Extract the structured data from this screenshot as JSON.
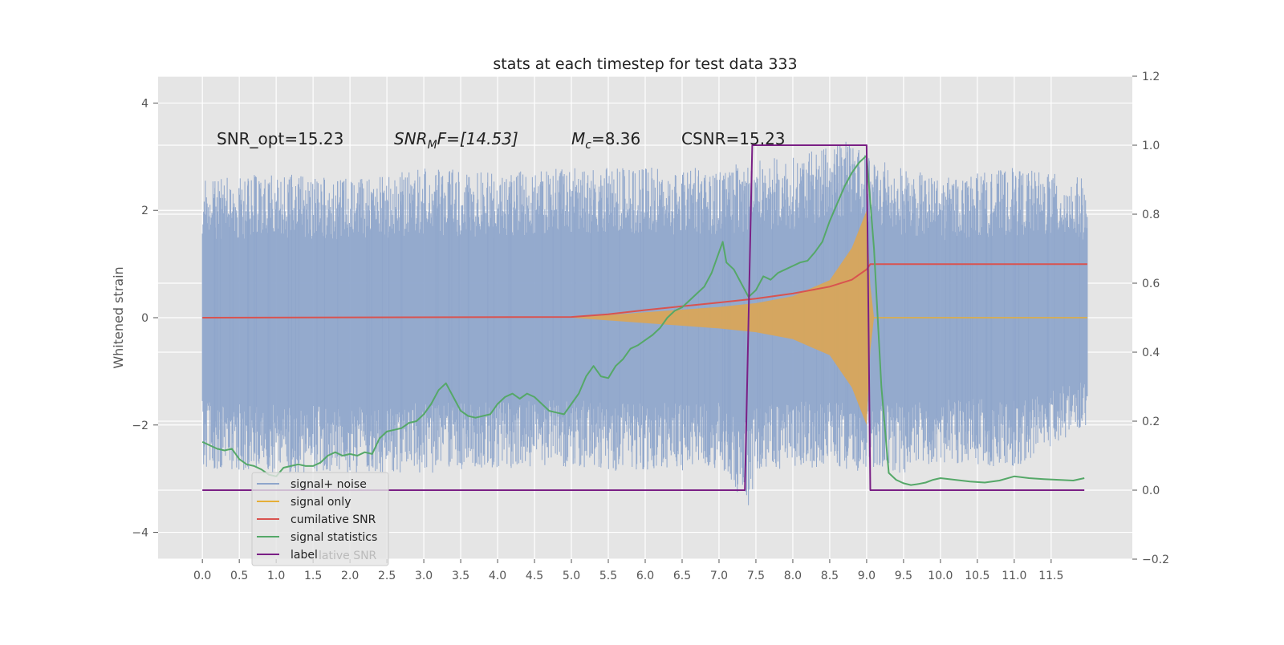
{
  "chart_data": {
    "type": "line",
    "title": "stats at each timestep for test data 333",
    "ylabel": "Whitened strain",
    "xlabel": "",
    "xlim": [
      -0.6,
      12.6
    ],
    "ylim_left": [
      -4.5,
      4.5
    ],
    "ylim_right": [
      -0.2,
      1.2
    ],
    "x_ticks": [
      "0.0",
      "0.5",
      "1.0",
      "1.5",
      "2.0",
      "2.5",
      "3.0",
      "3.5",
      "4.0",
      "4.5",
      "5.0",
      "5.5",
      "6.0",
      "6.5",
      "7.0",
      "7.5",
      "8.0",
      "8.5",
      "9.0",
      "9.5",
      "10.0",
      "10.5",
      "11.0",
      "11.5"
    ],
    "y_ticks_left": [
      "4",
      "2",
      "0",
      "−2",
      "−4"
    ],
    "y_ticks_left_values": [
      4,
      2,
      0,
      -2,
      -4
    ],
    "y_ticks_right": [
      "1.2",
      "1.0",
      "0.8",
      "0.6",
      "0.4",
      "0.2",
      "0.0",
      "−0.2"
    ],
    "y_ticks_right_values": [
      1.2,
      1.0,
      0.8,
      0.6,
      0.4,
      0.2,
      0.0,
      -0.2
    ],
    "grid": true,
    "legend_position": "lower-left",
    "annotations": {
      "snr_opt": "SNR_opt=15.23",
      "snr_mf_main": "SNR",
      "snr_mf_sub": "M",
      "snr_mf_rest": "F=[14.53]",
      "mc_main": "M",
      "mc_sub": "c",
      "mc_rest": "=8.36",
      "csnr": "CSNR=15.23"
    },
    "legend_overlap_text": "lative SNR",
    "series": [
      {
        "name": "signal+ noise",
        "color": "#8fa6cb",
        "axis": "left",
        "envelope": {
          "x": [
            0.0,
            1.0,
            2.0,
            3.0,
            4.0,
            5.0,
            6.0,
            7.0,
            7.4,
            7.5,
            8.0,
            8.5,
            8.8,
            9.0,
            9.5,
            10.0,
            11.0,
            11.99
          ],
          "max": [
            2.6,
            2.7,
            2.6,
            2.8,
            2.7,
            2.8,
            2.8,
            2.8,
            2.9,
            3.0,
            3.0,
            3.2,
            3.5,
            3.0,
            2.8,
            2.6,
            2.8,
            2.6
          ],
          "min": [
            -2.8,
            -2.9,
            -2.9,
            -2.9,
            -2.8,
            -2.8,
            -2.9,
            -2.8,
            -3.6,
            -3.0,
            -2.8,
            -2.8,
            -2.9,
            -2.8,
            -2.9,
            -2.7,
            -2.8,
            -2.0
          ]
        }
      },
      {
        "name": "signal only",
        "color": "#e5ae38",
        "axis": "left",
        "x": [
          5.0,
          6.0,
          6.5,
          7.0,
          7.5,
          8.0,
          8.5,
          8.8,
          9.0,
          9.05,
          9.1,
          11.99
        ],
        "upper": [
          0.0,
          0.1,
          0.15,
          0.2,
          0.27,
          0.4,
          0.7,
          1.3,
          2.0,
          0.6,
          0.0,
          0.0
        ],
        "lower": [
          0.0,
          -0.1,
          -0.15,
          -0.2,
          -0.27,
          -0.4,
          -0.7,
          -1.3,
          -2.0,
          -0.6,
          0.0,
          0.0
        ]
      },
      {
        "name": "cumilative SNR",
        "color": "#d9534f",
        "axis": "right",
        "x": [
          0.0,
          5.0,
          5.5,
          6.0,
          6.5,
          7.0,
          7.5,
          8.0,
          8.5,
          8.8,
          9.0,
          9.05,
          11.99
        ],
        "values": [
          0.5,
          0.502,
          0.51,
          0.522,
          0.533,
          0.544,
          0.555,
          0.57,
          0.59,
          0.61,
          0.64,
          0.655,
          0.655
        ]
      },
      {
        "name": "signal statistics",
        "color": "#55a868",
        "axis": "right",
        "x": [
          0.0,
          0.1,
          0.2,
          0.3,
          0.4,
          0.5,
          0.6,
          0.7,
          0.8,
          0.9,
          1.0,
          1.1,
          1.2,
          1.3,
          1.4,
          1.5,
          1.6,
          1.7,
          1.8,
          1.9,
          2.0,
          2.1,
          2.2,
          2.3,
          2.4,
          2.5,
          2.6,
          2.7,
          2.8,
          2.9,
          3.0,
          3.1,
          3.2,
          3.3,
          3.4,
          3.5,
          3.6,
          3.7,
          3.8,
          3.9,
          4.0,
          4.1,
          4.2,
          4.3,
          4.4,
          4.5,
          4.6,
          4.7,
          4.8,
          4.9,
          5.0,
          5.1,
          5.2,
          5.3,
          5.4,
          5.5,
          5.6,
          5.7,
          5.8,
          5.9,
          6.0,
          6.1,
          6.2,
          6.3,
          6.4,
          6.5,
          6.6,
          6.7,
          6.8,
          6.9,
          7.0,
          7.05,
          7.1,
          7.2,
          7.3,
          7.4,
          7.5,
          7.6,
          7.7,
          7.8,
          7.9,
          8.0,
          8.1,
          8.2,
          8.3,
          8.4,
          8.5,
          8.6,
          8.7,
          8.8,
          8.9,
          9.0,
          9.1,
          9.2,
          9.3,
          9.4,
          9.5,
          9.6,
          9.7,
          9.8,
          9.9,
          10.0,
          10.2,
          10.4,
          10.6,
          10.8,
          11.0,
          11.2,
          11.4,
          11.6,
          11.8,
          11.95
        ],
        "values": [
          0.14,
          0.13,
          0.12,
          0.115,
          0.12,
          0.09,
          0.075,
          0.07,
          0.06,
          0.045,
          0.04,
          0.065,
          0.07,
          0.075,
          0.07,
          0.07,
          0.08,
          0.1,
          0.11,
          0.1,
          0.105,
          0.1,
          0.11,
          0.105,
          0.15,
          0.17,
          0.175,
          0.18,
          0.195,
          0.2,
          0.22,
          0.25,
          0.29,
          0.31,
          0.27,
          0.23,
          0.215,
          0.21,
          0.215,
          0.22,
          0.25,
          0.27,
          0.28,
          0.265,
          0.28,
          0.27,
          0.25,
          0.23,
          0.225,
          0.22,
          0.25,
          0.28,
          0.33,
          0.36,
          0.33,
          0.325,
          0.36,
          0.38,
          0.41,
          0.42,
          0.435,
          0.45,
          0.47,
          0.5,
          0.52,
          0.53,
          0.55,
          0.57,
          0.59,
          0.63,
          0.69,
          0.72,
          0.66,
          0.64,
          0.6,
          0.56,
          0.58,
          0.62,
          0.61,
          0.63,
          0.64,
          0.65,
          0.66,
          0.665,
          0.69,
          0.72,
          0.78,
          0.83,
          0.88,
          0.92,
          0.95,
          0.97,
          0.7,
          0.3,
          0.05,
          0.03,
          0.02,
          0.015,
          0.018,
          0.022,
          0.03,
          0.035,
          0.03,
          0.025,
          0.022,
          0.028,
          0.04,
          0.035,
          0.032,
          0.03,
          0.028,
          0.035
        ]
      },
      {
        "name": "label",
        "color": "#7a1f85",
        "axis": "right",
        "x": [
          0.0,
          7.35,
          7.45,
          9.0,
          9.05,
          11.95
        ],
        "values": [
          0.0,
          0.0,
          1.0,
          1.0,
          0.0,
          0.0
        ]
      }
    ]
  }
}
